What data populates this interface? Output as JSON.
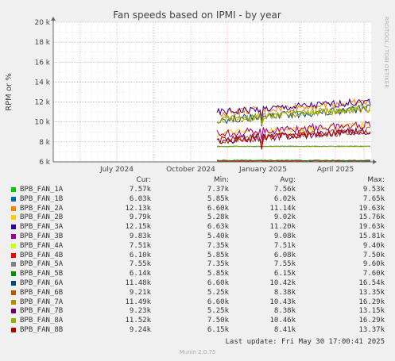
{
  "chart_data": {
    "type": "line",
    "title": "Fan speeds based on IPMI - by year",
    "ylabel": "RPM or %",
    "side_label": "RRDTOOL / TOBI OETIKER",
    "y_ticks": [
      "6 k",
      "8 k",
      "10 k",
      "12 k",
      "14 k",
      "16 k",
      "18 k",
      "20 k"
    ],
    "ylim": [
      6000,
      20000
    ],
    "x_ticks": [
      "July 2024",
      "October 2024",
      "January 2025",
      "April 2025"
    ],
    "grid": true,
    "legend_headers": [
      "Cur:",
      "Min:",
      "Avg:",
      "Max:"
    ],
    "series": [
      {
        "name": "BPB_FAN_1A",
        "color": "#00cc00",
        "cur": "7.57k",
        "min": "7.37k",
        "avg": "7.56k",
        "max": "9.53k"
      },
      {
        "name": "BPB_FAN_1B",
        "color": "#0066b3",
        "cur": "6.03k",
        "min": "5.85k",
        "avg": "6.02k",
        "max": "7.65k"
      },
      {
        "name": "BPB_FAN_2A",
        "color": "#ff8000",
        "cur": "12.13k",
        "min": "6.60k",
        "avg": "11.14k",
        "max": "19.63k"
      },
      {
        "name": "BPB_FAN_2B",
        "color": "#ffcc00",
        "cur": "9.79k",
        "min": "5.28k",
        "avg": "9.02k",
        "max": "15.76k"
      },
      {
        "name": "BPB_FAN_3A",
        "color": "#330099",
        "cur": "12.15k",
        "min": "6.63k",
        "avg": "11.20k",
        "max": "19.63k"
      },
      {
        "name": "BPB_FAN_3B",
        "color": "#990099",
        "cur": "9.83k",
        "min": "5.40k",
        "avg": "9.08k",
        "max": "15.81k"
      },
      {
        "name": "BPB_FAN_4A",
        "color": "#ccff00",
        "cur": "7.51k",
        "min": "7.35k",
        "avg": "7.51k",
        "max": "9.40k"
      },
      {
        "name": "BPB_FAN_4B",
        "color": "#ff0000",
        "cur": "6.10k",
        "min": "5.85k",
        "avg": "6.08k",
        "max": "7.50k"
      },
      {
        "name": "BPB_FAN_5A",
        "color": "#808080",
        "cur": "7.55k",
        "min": "7.35k",
        "avg": "7.55k",
        "max": "9.60k"
      },
      {
        "name": "BPB_FAN_5B",
        "color": "#008f00",
        "cur": "6.14k",
        "min": "5.85k",
        "avg": "6.15k",
        "max": "7.60k"
      },
      {
        "name": "BPB_FAN_6A",
        "color": "#00487d",
        "cur": "11.48k",
        "min": "6.60k",
        "avg": "10.42k",
        "max": "16.54k"
      },
      {
        "name": "BPB_FAN_6B",
        "color": "#b35a00",
        "cur": "9.21k",
        "min": "5.25k",
        "avg": "8.38k",
        "max": "13.35k"
      },
      {
        "name": "BPB_FAN_7A",
        "color": "#b38f00",
        "cur": "11.49k",
        "min": "6.60k",
        "avg": "10.43k",
        "max": "16.29k"
      },
      {
        "name": "BPB_FAN_7B",
        "color": "#6b006b",
        "cur": "9.23k",
        "min": "5.25k",
        "avg": "8.38k",
        "max": "13.15k"
      },
      {
        "name": "BPB_FAN_8A",
        "color": "#8fb300",
        "cur": "11.52k",
        "min": "7.50k",
        "avg": "10.46k",
        "max": "16.29k"
      },
      {
        "name": "BPB_FAN_8B",
        "color": "#b30000",
        "cur": "9.24k",
        "min": "6.15k",
        "avg": "8.41k",
        "max": "13.37k"
      }
    ]
  },
  "footer": {
    "last_update": "Last update: Fri May 30 17:00:41 2025",
    "munin": "Munin 2.0.75"
  }
}
